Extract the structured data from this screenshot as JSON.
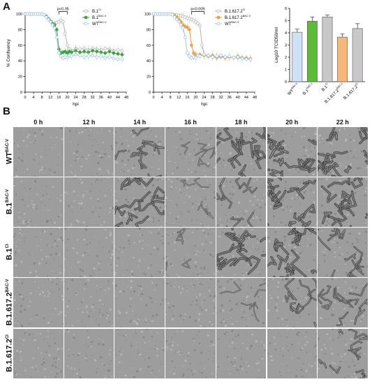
{
  "panel_labels": {
    "a": "A",
    "b": "B"
  },
  "colors": {
    "b1_ci": "#b9b9b9",
    "b1_bacv": "#3ea33e",
    "wt_bacv": "#a8c8e8",
    "b16172_ci": "#b9b9b9",
    "b16172_bacv": "#f0a040",
    "bar_wt": "#cfe2f5",
    "bar_b1_bacv": "#5dbb3a",
    "bar_b1_ci": "#c8c8c8",
    "bar_b16172_bacv": "#f6b77a",
    "bar_b16172_ci": "#c8c8c8"
  },
  "chart_data": [
    {
      "type": "line",
      "ylabel": "% Confluency",
      "xlabel": "hpi",
      "xlim": [
        0,
        48
      ],
      "ylim": [
        0,
        100
      ],
      "xticks": [
        "0",
        "4",
        "8",
        "12",
        "16",
        "20",
        "24",
        "28",
        "32",
        "36",
        "40",
        "44",
        "48"
      ],
      "yticks": [
        "0",
        "20",
        "40",
        "60",
        "80",
        "100"
      ],
      "annotation": "p<0.05",
      "legend": [
        {
          "label": "B.1",
          "sup": "CI"
        },
        {
          "label": "B.1",
          "sup": "BAC-V"
        },
        {
          "label": "WT",
          "sup": "BAC-V"
        }
      ],
      "series": [
        {
          "name": "B.1 CI",
          "x": [
            0,
            1,
            2,
            3,
            4,
            5,
            6,
            7,
            8,
            9,
            10,
            11,
            12,
            13,
            14,
            15,
            16,
            17,
            18,
            19,
            20,
            21,
            22,
            24,
            26,
            28,
            30,
            32,
            34,
            36,
            38,
            40,
            42,
            44,
            46
          ],
          "y": [
            100,
            100,
            100,
            100,
            100,
            100,
            100,
            100,
            100,
            99,
            97,
            94,
            90,
            87,
            86,
            89,
            90,
            92,
            90,
            75,
            60,
            55,
            53,
            56,
            55,
            56,
            54,
            56,
            55,
            54,
            56,
            55,
            53,
            54,
            53
          ]
        },
        {
          "name": "B.1 BAC-V",
          "x": [
            0,
            1,
            2,
            3,
            4,
            5,
            6,
            7,
            8,
            9,
            10,
            11,
            12,
            13,
            14,
            15,
            16,
            17,
            18,
            19,
            20,
            21,
            22,
            24,
            26,
            28,
            30,
            32,
            34,
            36,
            38,
            40,
            42,
            44,
            46
          ],
          "y": [
            100,
            100,
            100,
            100,
            100,
            100,
            100,
            100,
            100,
            99,
            97,
            94,
            91,
            88,
            86,
            80,
            55,
            50,
            51,
            52,
            50,
            52,
            51,
            53,
            51,
            52,
            51,
            53,
            52,
            51,
            50,
            52,
            50,
            49,
            48
          ]
        },
        {
          "name": "WT BAC-V",
          "x": [
            0,
            1,
            2,
            3,
            4,
            5,
            6,
            7,
            8,
            9,
            10,
            11,
            12,
            13,
            14,
            15,
            16,
            17,
            18,
            19,
            20,
            21,
            22,
            24,
            26,
            28,
            30,
            32,
            34,
            36,
            38,
            40,
            42,
            44,
            46
          ],
          "y": [
            100,
            100,
            100,
            100,
            100,
            100,
            100,
            100,
            100,
            99,
            96,
            93,
            90,
            86,
            82,
            70,
            50,
            46,
            44,
            45,
            44,
            47,
            46,
            48,
            47,
            45,
            46,
            47,
            45,
            46,
            44,
            45,
            43,
            42,
            42
          ]
        }
      ]
    },
    {
      "type": "line",
      "ylabel": "",
      "xlabel": "hpi",
      "xlim": [
        0,
        48
      ],
      "ylim": [
        0,
        100
      ],
      "xticks": [
        "0",
        "4",
        "8",
        "12",
        "16",
        "20",
        "24",
        "28",
        "32",
        "36",
        "40",
        "44",
        "48"
      ],
      "yticks": [
        "0",
        "20",
        "40",
        "60",
        "80",
        "100"
      ],
      "annotation": "p<0.009",
      "legend": [
        {
          "label": "B.1.617.2",
          "sup": "CI"
        },
        {
          "label": "B.1.617.2",
          "sup": "BAC-V"
        },
        {
          "label": "WT",
          "sup": "BAC-V"
        }
      ],
      "series": [
        {
          "name": "B.1.617.2 CI",
          "x": [
            0,
            1,
            2,
            3,
            4,
            5,
            6,
            7,
            8,
            9,
            10,
            11,
            12,
            13,
            14,
            15,
            16,
            17,
            18,
            19,
            20,
            21,
            22,
            23,
            24,
            26,
            28,
            30,
            32,
            34,
            36,
            38,
            40,
            42,
            44,
            46
          ],
          "y": [
            100,
            100,
            100,
            100,
            100,
            100,
            100,
            100,
            100,
            100,
            99,
            99,
            98,
            98,
            97,
            96,
            95,
            94,
            93,
            92,
            90,
            88,
            85,
            60,
            48,
            46,
            45,
            44,
            45,
            44,
            45,
            44,
            44,
            43,
            44,
            43
          ]
        },
        {
          "name": "B.1.617.2 BAC-V",
          "x": [
            0,
            1,
            2,
            3,
            4,
            5,
            6,
            7,
            8,
            9,
            10,
            11,
            12,
            13,
            14,
            15,
            16,
            17,
            18,
            19,
            20,
            21,
            22,
            24,
            26,
            28,
            30,
            32,
            34,
            36,
            38,
            40,
            42,
            44,
            46
          ],
          "y": [
            100,
            100,
            100,
            100,
            100,
            100,
            100,
            100,
            100,
            99,
            98,
            96,
            93,
            90,
            86,
            84,
            83,
            80,
            60,
            50,
            48,
            47,
            48,
            47,
            46,
            47,
            45,
            46,
            44,
            45,
            44,
            46,
            44,
            43,
            42
          ]
        },
        {
          "name": "WT BAC-V",
          "x": [
            0,
            1,
            2,
            3,
            4,
            5,
            6,
            7,
            8,
            9,
            10,
            11,
            12,
            13,
            14,
            15,
            16,
            17,
            18,
            19,
            20,
            21,
            22,
            24,
            26,
            28,
            30,
            32,
            34,
            36,
            38,
            40,
            42,
            44,
            46
          ],
          "y": [
            100,
            100,
            100,
            100,
            100,
            100,
            100,
            100,
            100,
            99,
            96,
            93,
            90,
            86,
            82,
            70,
            50,
            46,
            44,
            45,
            44,
            47,
            46,
            48,
            47,
            45,
            46,
            47,
            45,
            46,
            44,
            45,
            43,
            42,
            42
          ]
        }
      ]
    },
    {
      "type": "bar",
      "ylabel": "Log10 TCID50/ml",
      "ylim": [
        0,
        6
      ],
      "yticks": [
        "0",
        "1",
        "2",
        "3",
        "4",
        "5",
        "6"
      ],
      "categories": [
        {
          "label": "WT",
          "sup": "BAC-V"
        },
        {
          "label": "B.1",
          "sup": "BAC-V"
        },
        {
          "label": "B.1",
          "sup": "CI"
        },
        {
          "label": "B.1.617.2",
          "sup": "BAC-V"
        },
        {
          "label": "B.1.617.2",
          "sup": "CI"
        }
      ],
      "values": [
        4.05,
        4.95,
        5.3,
        3.65,
        4.35
      ],
      "errors": [
        0.25,
        0.35,
        0.15,
        0.25,
        0.4
      ]
    }
  ],
  "grid": {
    "timepoints": [
      "0 h",
      "12 h",
      "14 h",
      "16 h",
      "18 h",
      "20 h",
      "22 h"
    ],
    "rows": [
      {
        "label": "WT",
        "sup": "BAC-V",
        "cpe": [
          0,
          0,
          2,
          1,
          3,
          3,
          3
        ]
      },
      {
        "label": "B.1",
        "sup": "BAC-V",
        "cpe": [
          0,
          0,
          3,
          1,
          2,
          3,
          3
        ]
      },
      {
        "label": "B.1",
        "sup": "CI",
        "cpe": [
          0,
          0,
          0,
          1,
          3,
          3,
          2
        ]
      },
      {
        "label": "B.1.617.2",
        "sup": "BAC-V",
        "cpe": [
          0,
          0,
          0,
          0,
          1,
          2,
          2
        ]
      },
      {
        "label": "B.1.617.2",
        "sup": "CI",
        "cpe": [
          0,
          0,
          0,
          0,
          0,
          0,
          2
        ]
      }
    ]
  }
}
